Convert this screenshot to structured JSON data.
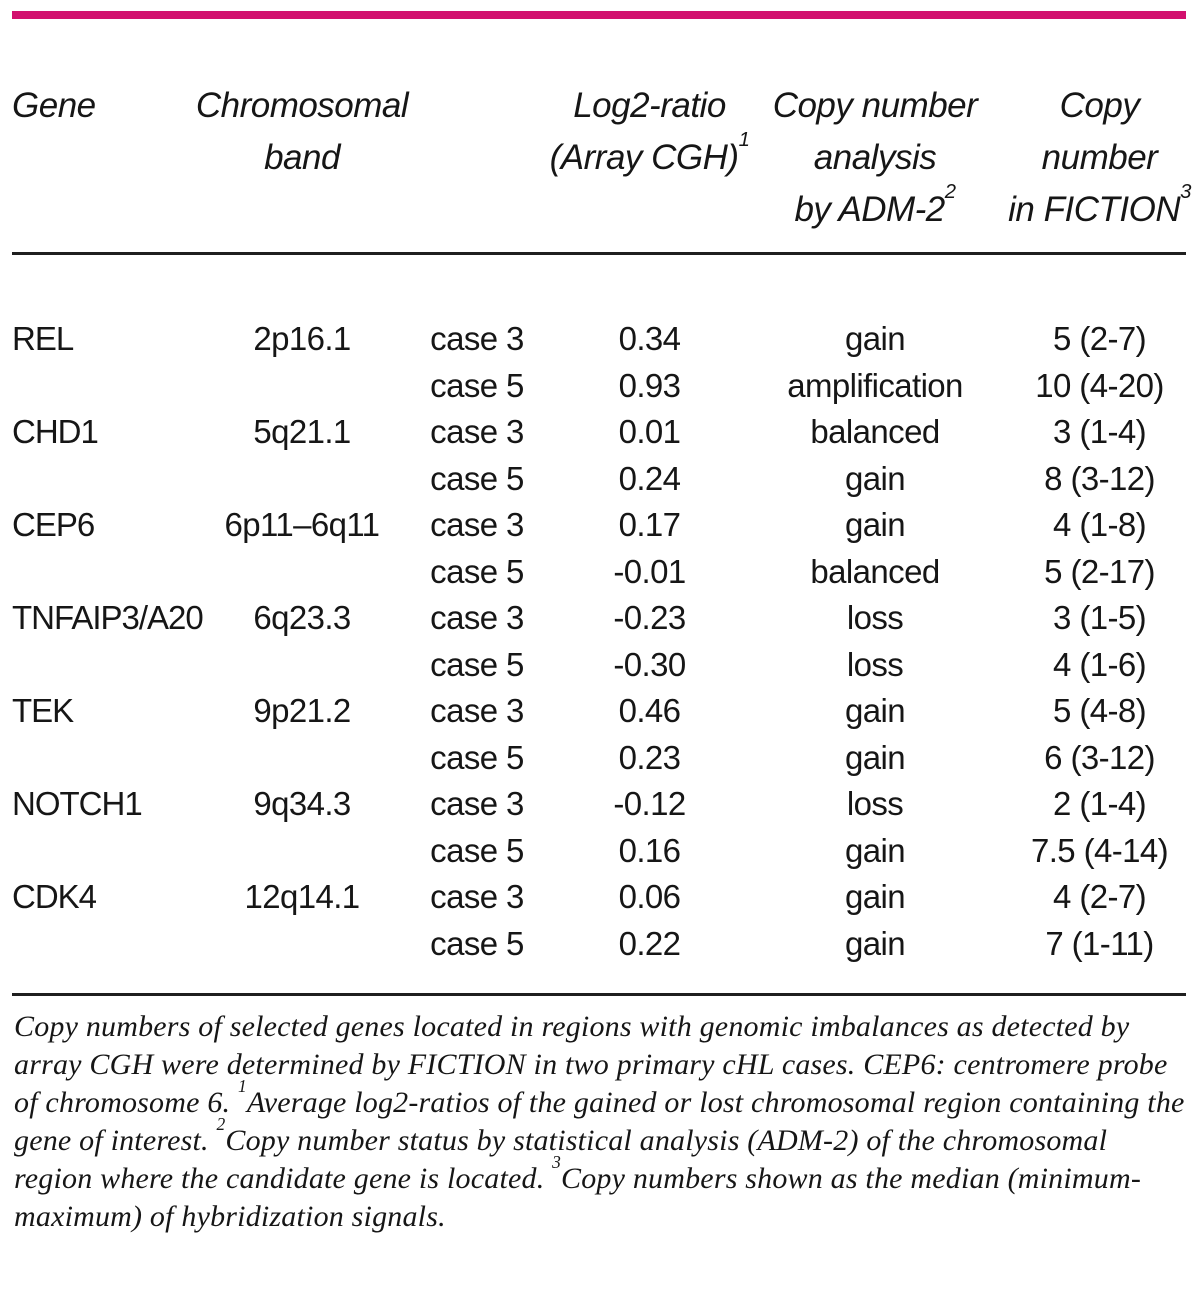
{
  "colors": {
    "accent": "#d2106e",
    "rule": "#1f1f1f",
    "text": "#161616"
  },
  "table": {
    "headers": {
      "gene": "Gene",
      "band": [
        "Chromosomal",
        "band"
      ],
      "log2": [
        "Log2-ratio",
        "(Array CGH)"
      ],
      "log2_sup": "1",
      "adm2": [
        "Copy number",
        "analysis",
        "by ADM-2"
      ],
      "adm2_sup": "2",
      "fiction": [
        "Copy",
        "number",
        "in FICTION"
      ],
      "fiction_sup": "3"
    },
    "rows": [
      {
        "gene": "REL",
        "band": "2p16.1",
        "case": "case 3",
        "log2": "0.34",
        "adm2": "gain",
        "fiction": "5 (2-7)"
      },
      {
        "gene": "",
        "band": "",
        "case": "case 5",
        "log2": "0.93",
        "adm2": "amplification",
        "fiction": "10 (4-20)"
      },
      {
        "gene": "CHD1",
        "band": "5q21.1",
        "case": "case 3",
        "log2": "0.01",
        "adm2": "balanced",
        "fiction": "3 (1-4)"
      },
      {
        "gene": "",
        "band": "",
        "case": "case 5",
        "log2": "0.24",
        "adm2": "gain",
        "fiction": "8 (3-12)"
      },
      {
        "gene": "CEP6",
        "band": "6p11–6q11",
        "case": "case 3",
        "log2": "0.17",
        "adm2": "gain",
        "fiction": "4 (1-8)"
      },
      {
        "gene": "",
        "band": "",
        "case": "case 5",
        "log2": "-0.01",
        "adm2": "balanced",
        "fiction": "5 (2-17)"
      },
      {
        "gene": "TNFAIP3/A20",
        "band": "6q23.3",
        "case": "case 3",
        "log2": "-0.23",
        "adm2": "loss",
        "fiction": "3 (1-5)"
      },
      {
        "gene": "",
        "band": "",
        "case": "case 5",
        "log2": "-0.30",
        "adm2": "loss",
        "fiction": "4 (1-6)"
      },
      {
        "gene": "TEK",
        "band": "9p21.2",
        "case": "case 3",
        "log2": "0.46",
        "adm2": "gain",
        "fiction": "5 (4-8)"
      },
      {
        "gene": "",
        "band": "",
        "case": "case 5",
        "log2": "0.23",
        "adm2": "gain",
        "fiction": "6 (3-12)"
      },
      {
        "gene": "NOTCH1",
        "band": "9q34.3",
        "case": "case 3",
        "log2": "-0.12",
        "adm2": "loss",
        "fiction": "2 (1-4)"
      },
      {
        "gene": "",
        "band": "",
        "case": "case 5",
        "log2": "0.16",
        "adm2": "gain",
        "fiction": "7.5 (4-14)"
      },
      {
        "gene": "CDK4",
        "band": "12q14.1",
        "case": "case 3",
        "log2": "0.06",
        "adm2": "gain",
        "fiction": "4 (2-7)"
      },
      {
        "gene": "",
        "band": "",
        "case": "case 5",
        "log2": "0.22",
        "adm2": "gain",
        "fiction": "7 (1-11)"
      }
    ]
  },
  "footnote": {
    "text1": "Copy numbers of selected genes located in regions with genomic imbalances as detected by array CGH were determined by FICTION in two primary cHL cases. CEP6: centromere probe of chromosome 6. ",
    "sup1": "1",
    "text2": "Average log2-ratios of the gained or lost chromosomal region containing the gene of interest. ",
    "sup2": "2",
    "text3": "Copy number status by statistical analysis (ADM-2) of the chromosomal region where the candidate gene is located. ",
    "sup3": "3",
    "text4": "Copy numbers shown as the median (minimum-maximum) of hybridization signals."
  }
}
